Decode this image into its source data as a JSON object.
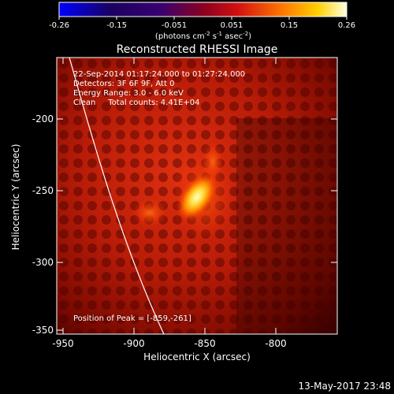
{
  "colorbar": {
    "tick_labels": [
      "-0.26",
      "-0.15",
      "-0.051",
      "0.051",
      "0.15",
      "0.26"
    ],
    "unit_label_main": "(photons cm",
    "unit_label_sup1": "-2",
    "unit_label_mid1": " s",
    "unit_label_sup2": "-1",
    "unit_label_mid2": " asec",
    "unit_label_sup3": "-2",
    "unit_label_end": ")"
  },
  "plot": {
    "title": "Reconstructed RHESSI Image",
    "info_lines": [
      "22-Sep-2014 01:17:24.000 to 01:27:24.000",
      "Detectors: 3F 6F 9F, Att 0",
      "Energy Range: 3.0 - 6.0 keV",
      "Clean     Total counts: 4.41E+04"
    ],
    "peak_label": "Position of Peak = [-859,-261]",
    "xlabel": "Heliocentric X (arcsec)",
    "ylabel": "Heliocentric Y (arcsec)",
    "x_ticks": [
      "-950",
      "-900",
      "-850",
      "-800"
    ],
    "y_ticks": [
      "-200",
      "-250",
      "-300",
      "-350"
    ]
  },
  "footer": {
    "timestamp": "13-May-2017 23:48"
  },
  "colors": {
    "background": "#000000",
    "limb_line": "#ffffff"
  }
}
